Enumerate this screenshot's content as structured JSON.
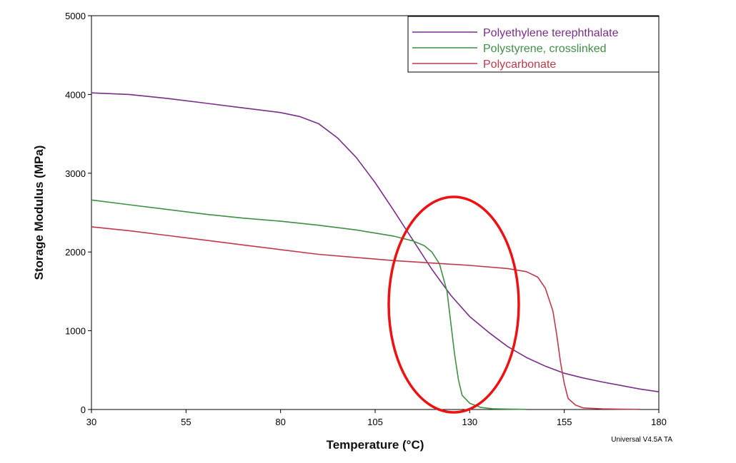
{
  "chart_data": {
    "type": "line",
    "title": "",
    "xlabel": "Temperature (°C)",
    "ylabel": "Storage Modulus (MPa)",
    "xlim": [
      30,
      180
    ],
    "ylim": [
      0,
      5000
    ],
    "x_ticks": [
      "30",
      "55",
      "80",
      "105",
      "130",
      "155",
      "180"
    ],
    "y_ticks": [
      "0",
      "1000",
      "2000",
      "3000",
      "4000",
      "5000"
    ],
    "grid": false,
    "legend_position": "top-right",
    "footer_note": "Universal V4.5A TA",
    "series": [
      {
        "name": "Polyethylene terephthalate",
        "color": "#7a2e8a",
        "points": [
          [
            30,
            4020
          ],
          [
            40,
            4000
          ],
          [
            50,
            3950
          ],
          [
            60,
            3890
          ],
          [
            70,
            3830
          ],
          [
            80,
            3770
          ],
          [
            85,
            3720
          ],
          [
            90,
            3630
          ],
          [
            95,
            3450
          ],
          [
            100,
            3200
          ],
          [
            105,
            2880
          ],
          [
            110,
            2520
          ],
          [
            115,
            2150
          ],
          [
            120,
            1780
          ],
          [
            125,
            1450
          ],
          [
            130,
            1180
          ],
          [
            135,
            980
          ],
          [
            140,
            800
          ],
          [
            145,
            660
          ],
          [
            150,
            550
          ],
          [
            155,
            460
          ],
          [
            160,
            400
          ],
          [
            165,
            350
          ],
          [
            170,
            305
          ],
          [
            175,
            260
          ],
          [
            180,
            225
          ]
        ]
      },
      {
        "name": "Polystyrene, crosslinked",
        "color": "#3f8f45",
        "points": [
          [
            30,
            2660
          ],
          [
            40,
            2600
          ],
          [
            50,
            2540
          ],
          [
            60,
            2480
          ],
          [
            70,
            2430
          ],
          [
            80,
            2390
          ],
          [
            90,
            2340
          ],
          [
            100,
            2280
          ],
          [
            105,
            2240
          ],
          [
            110,
            2200
          ],
          [
            115,
            2140
          ],
          [
            118,
            2080
          ],
          [
            120,
            2000
          ],
          [
            122,
            1850
          ],
          [
            124,
            1500
          ],
          [
            125,
            1100
          ],
          [
            126,
            700
          ],
          [
            127,
            380
          ],
          [
            128,
            180
          ],
          [
            130,
            80
          ],
          [
            133,
            25
          ],
          [
            136,
            10
          ],
          [
            140,
            5
          ],
          [
            145,
            2
          ]
        ]
      },
      {
        "name": "Polycarbonate",
        "color": "#c0394b",
        "points": [
          [
            30,
            2320
          ],
          [
            40,
            2270
          ],
          [
            50,
            2210
          ],
          [
            60,
            2150
          ],
          [
            70,
            2090
          ],
          [
            80,
            2030
          ],
          [
            90,
            1970
          ],
          [
            100,
            1930
          ],
          [
            110,
            1890
          ],
          [
            120,
            1860
          ],
          [
            130,
            1830
          ],
          [
            140,
            1790
          ],
          [
            145,
            1750
          ],
          [
            148,
            1680
          ],
          [
            150,
            1540
          ],
          [
            152,
            1250
          ],
          [
            153,
            950
          ],
          [
            154,
            600
          ],
          [
            155,
            330
          ],
          [
            156,
            140
          ],
          [
            158,
            55
          ],
          [
            160,
            20
          ],
          [
            165,
            8
          ],
          [
            170,
            4
          ],
          [
            175,
            2
          ]
        ]
      }
    ]
  }
}
